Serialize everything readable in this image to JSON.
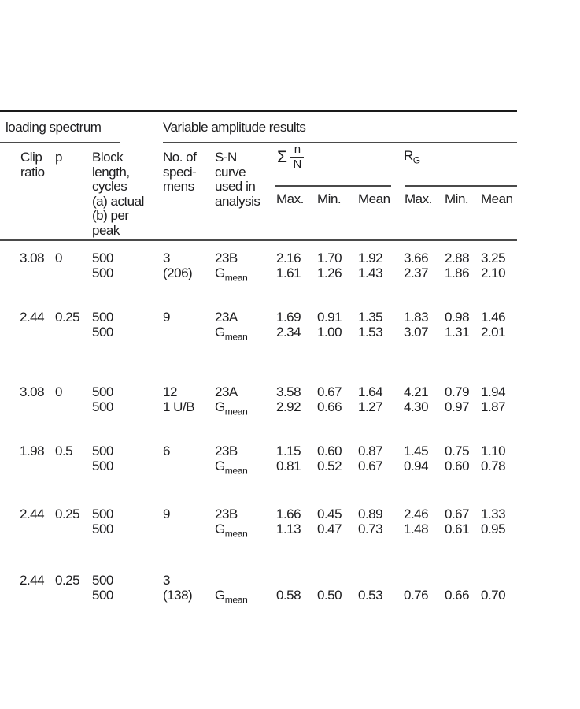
{
  "table": {
    "group_headers": {
      "left": "loading spectrum",
      "right": "Variable amplitude results"
    },
    "columns": {
      "clip": "Clip\nratio",
      "p": "p",
      "block": "Block\nlength,\ncycles\n(a) actual\n(b) per\npeak",
      "specimens": "No. of\nspeci-\nmens",
      "sn_curve": "S-N\ncurve\nused in\nanalysis",
      "sigma_symbol": "Σ",
      "sigma_num": "n",
      "sigma_den": "N",
      "rg_base": "R",
      "rg_subscript": "G",
      "sigma_cols": [
        "Max.",
        "Min.",
        "Mean"
      ],
      "rg_cols": [
        "Max.",
        "Min.",
        "Mean"
      ]
    },
    "rows": [
      {
        "clip": "3.08",
        "p": "0",
        "block_l1": "500",
        "block_l2": "500",
        "spec_l1": "3",
        "spec_l2": "(206)",
        "sn_l1": "23B",
        "sn2_base": "G",
        "sn2_sub": "mean",
        "vals_l1": [
          "2.16",
          "1.70",
          "1.92",
          "3.66",
          "2.88",
          "3.25"
        ],
        "vals_l2": [
          "1.61",
          "1.26",
          "1.43",
          "2.37",
          "1.86",
          "2.10"
        ]
      },
      {
        "clip": "2.44",
        "p": "0.25",
        "block_l1": "500",
        "block_l2": "500",
        "spec_l1": "9",
        "spec_l2": "",
        "sn_l1": "23A",
        "sn2_base": "G",
        "sn2_sub": "mean",
        "vals_l1": [
          "1.69",
          "0.91",
          "1.35",
          "1.83",
          "0.98",
          "1.46"
        ],
        "vals_l2": [
          "2.34",
          "1.00",
          "1.53",
          "3.07",
          "1.31",
          "2.01"
        ]
      },
      {
        "clip": "3.08",
        "p": "0",
        "block_l1": "500",
        "block_l2": "500",
        "spec_l1": "12",
        "spec_l2": "1 U/B",
        "sn_l1": "23A",
        "sn2_base": "G",
        "sn2_sub": "mean",
        "vals_l1": [
          "3.58",
          "0.67",
          "1.64",
          "4.21",
          "0.79",
          "1.94"
        ],
        "vals_l2": [
          "2.92",
          "0.66",
          "1.27",
          "4.30",
          "0.97",
          "1.87"
        ]
      },
      {
        "clip": "1.98",
        "p": "0.5",
        "block_l1": "500",
        "block_l2": "500",
        "spec_l1": "6",
        "spec_l2": "",
        "sn_l1": "23B",
        "sn2_base": "G",
        "sn2_sub": "mean",
        "vals_l1": [
          "1.15",
          "0.60",
          "0.87",
          "1.45",
          "0.75",
          "1.10"
        ],
        "vals_l2": [
          "0.81",
          "0.52",
          "0.67",
          "0.94",
          "0.60",
          "0.78"
        ]
      },
      {
        "clip": "2.44",
        "p": "0.25",
        "block_l1": "500",
        "block_l2": "500",
        "spec_l1": "9",
        "spec_l2": "",
        "sn_l1": "23B",
        "sn2_base": "G",
        "sn2_sub": "mean",
        "vals_l1": [
          "1.66",
          "0.45",
          "0.89",
          "2.46",
          "0.67",
          "1.33"
        ],
        "vals_l2": [
          "1.13",
          "0.47",
          "0.73",
          "1.48",
          "0.61",
          "0.95"
        ]
      },
      {
        "clip": "2.44",
        "p": "0.25",
        "block_l1": "500",
        "block_l2": "500",
        "spec_l1": "3",
        "spec_l2": "(138)",
        "sn_l1": "",
        "sn2_base": "G",
        "sn2_sub": "mean",
        "vals_l1": [
          "",
          "",
          "",
          "",
          "",
          ""
        ],
        "vals_l2": [
          "0.58",
          "0.50",
          "0.53",
          "0.76",
          "0.66",
          "0.70"
        ]
      }
    ]
  }
}
